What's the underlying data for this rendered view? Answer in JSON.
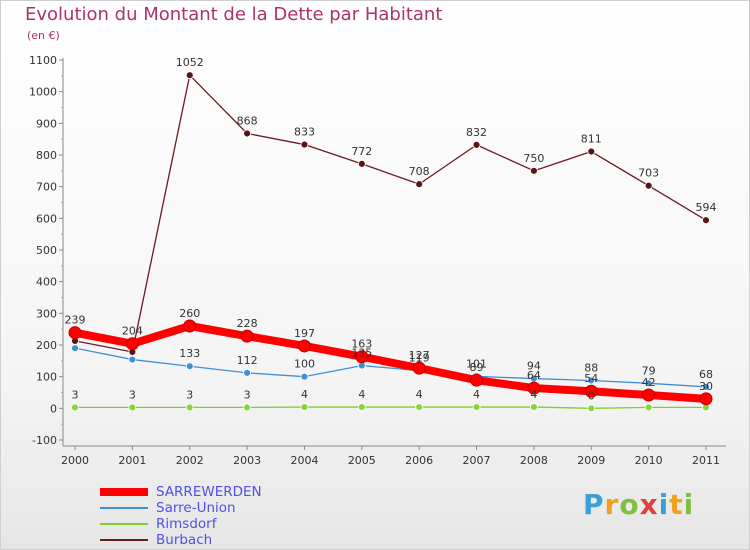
{
  "header": {
    "title": "Evolution du Montant de la Dette par Habitant",
    "subtitle": "(en €)"
  },
  "brand": {
    "text": "Proxiti",
    "colors": [
      "#3aa0d8",
      "#f0a020",
      "#80c040",
      "#e04040",
      "#3aa0d8",
      "#f0a020",
      "#80c040"
    ]
  },
  "chart_data": {
    "type": "line",
    "x": [
      "2000",
      "2001",
      "2002",
      "2003",
      "2004",
      "2005",
      "2006",
      "2007",
      "2008",
      "2009",
      "2010",
      "2011"
    ],
    "ylim": [
      -100,
      1100
    ],
    "yticks": [
      -100,
      0,
      100,
      200,
      300,
      400,
      500,
      600,
      700,
      800,
      900,
      1000,
      1100
    ],
    "grid": false,
    "legend_position": "bottom-left",
    "series": [
      {
        "name": "SARREWERDEN",
        "color": "#ff0000",
        "values": [
          239,
          204,
          260,
          228,
          197,
          163,
          127,
          89,
          64,
          54,
          42,
          30
        ],
        "labels": [
          "239",
          "204",
          "260",
          "228",
          "197",
          "163",
          "127",
          "89",
          "64",
          "54",
          "42",
          "30"
        ]
      },
      {
        "name": "Sarre-Union",
        "color": "#3f8fd6",
        "values": [
          190,
          154,
          133,
          112,
          100,
          135,
          119,
          101,
          94,
          88,
          79,
          68
        ],
        "labels": [
          "",
          "",
          "133",
          "112",
          "100",
          "135",
          "119",
          "101",
          "94",
          "88",
          "79",
          "68"
        ]
      },
      {
        "name": "Rimsdorf",
        "color": "#7fd02a",
        "values": [
          3,
          3,
          3,
          3,
          4,
          4,
          4,
          4,
          4,
          0,
          3,
          3
        ],
        "labels": [
          "3",
          "3",
          "3",
          "3",
          "4",
          "4",
          "4",
          "4",
          "4",
          "0",
          "",
          ""
        ]
      },
      {
        "name": "Burbach",
        "color": "#6b1a22",
        "values": [
          213,
          178,
          1052,
          868,
          833,
          772,
          708,
          832,
          750,
          811,
          703,
          594
        ],
        "labels": [
          "",
          "",
          "1052",
          "868",
          "833",
          "772",
          "708",
          "832",
          "750",
          "811",
          "703",
          "594"
        ]
      }
    ]
  }
}
